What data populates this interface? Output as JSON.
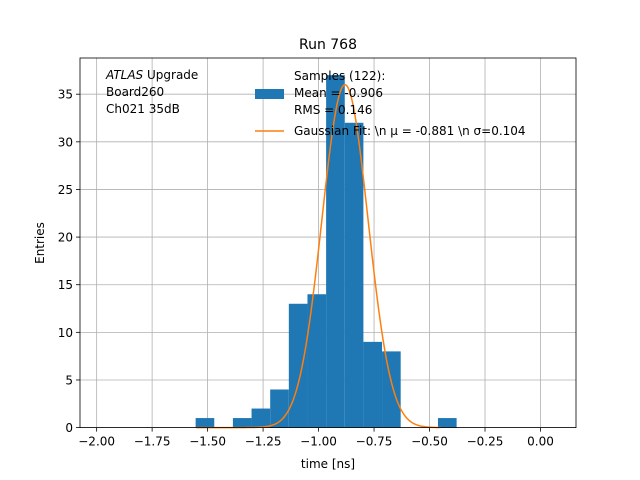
{
  "chart_data": {
    "type": "bar",
    "title": "Run 768",
    "xlabel": "time [ns]",
    "ylabel": "Entries",
    "xlim": [
      -2.075,
      0.16
    ],
    "ylim": [
      0,
      38.8
    ],
    "grid": true,
    "legend_placement": "top-right",
    "x_ticks": [
      -2.0,
      -1.75,
      -1.5,
      -1.25,
      -1.0,
      -0.75,
      -0.5,
      -0.25,
      0.0
    ],
    "x_tick_labels": [
      "−2.00",
      "−1.75",
      "−1.50",
      "−1.25",
      "−1.00",
      "−0.75",
      "−0.50",
      "−0.25",
      "0.00"
    ],
    "y_ticks": [
      0,
      5,
      10,
      15,
      20,
      25,
      30,
      35
    ],
    "y_tick_labels": [
      "0",
      "5",
      "10",
      "15",
      "20",
      "25",
      "30",
      "35"
    ],
    "histogram": {
      "name": "Samples (122):",
      "color": "#1f77b4",
      "bin_width": 0.084,
      "bins": [
        {
          "left": -1.554,
          "count": 1
        },
        {
          "left": -1.386,
          "count": 1
        },
        {
          "left": -1.302,
          "count": 2
        },
        {
          "left": -1.218,
          "count": 4
        },
        {
          "left": -1.134,
          "count": 13
        },
        {
          "left": -1.05,
          "count": 14
        },
        {
          "left": -0.966,
          "count": 37
        },
        {
          "left": -0.882,
          "count": 32
        },
        {
          "left": -0.798,
          "count": 9
        },
        {
          "left": -0.714,
          "count": 8
        },
        {
          "left": -0.462,
          "count": 1
        }
      ]
    },
    "gaussian_fit": {
      "color": "#ff7f0e",
      "mu": -0.881,
      "sigma": 0.104,
      "amplitude": 36,
      "x_range": [
        -1.55,
        -0.45
      ]
    },
    "annotation_lines": [
      {
        "italic": "ATLAS",
        "rest": " Upgrade"
      },
      {
        "italic": "",
        "rest": " Board260"
      },
      {
        "italic": "",
        "rest": " Ch021 35dB"
      }
    ],
    "legend": {
      "hist_lines": [
        "Samples (122):",
        " Mean = -0.906",
        " RMS = 0.146"
      ],
      "fit_label": "Gaussian Fit: \\n μ = -0.881 \\n σ=0.104"
    }
  }
}
